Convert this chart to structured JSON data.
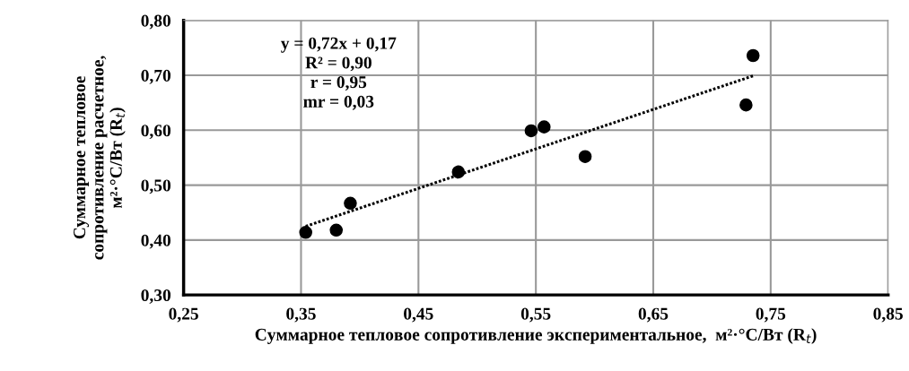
{
  "chart_data": {
    "type": "scatter",
    "xlabel": "Суммарное тепловое сопротивление экспериментальное,  м²·°С/Вт (R$_{t}$)",
    "ylabel": "Суммарное тепловое\nсопротивление расчетное,\nм²·°С/Вт (R$_{t}$)",
    "series": [
      {
        "color": "#000000",
        "marker": "circle",
        "x": [
          0.354,
          0.38,
          0.392,
          0.484,
          0.546,
          0.557,
          0.592,
          0.729,
          0.735
        ],
        "values": [
          0.414,
          0.418,
          0.467,
          0.524,
          0.599,
          0.606,
          0.552,
          0.646,
          0.736
        ]
      },
      {
        "type": "line",
        "color": "#000000",
        "line_style": "dotted",
        "x": [
          0.354,
          0.735
        ],
        "values": [
          0.425,
          0.699
        ]
      }
    ],
    "annotations": [
      "y = 0,72x + 0,17\nR² = 0,90\nr = 0,95\nmr = 0,03"
    ],
    "xlim": [
      0.25,
      0.85
    ],
    "xticks": [
      {
        "value": 0.25,
        "label": "0,25"
      },
      {
        "value": 0.35,
        "label": "0,35"
      },
      {
        "value": 0.45,
        "label": "0,45"
      },
      {
        "value": 0.55,
        "label": "0,55"
      },
      {
        "value": 0.65,
        "label": "0,65"
      },
      {
        "value": 0.75,
        "label": "0,75"
      },
      {
        "value": 0.85,
        "label": "0,85"
      }
    ],
    "ylim": [
      0.3,
      0.8
    ],
    "yticks": [
      {
        "value": 0.3,
        "label": "0,30"
      },
      {
        "value": 0.4,
        "label": "0,40"
      },
      {
        "value": 0.5,
        "label": "0,50"
      },
      {
        "value": 0.6,
        "label": "0,60"
      },
      {
        "value": 0.7,
        "label": "0,70"
      },
      {
        "value": 0.8,
        "label": "0,80"
      }
    ],
    "grid": true,
    "legend": false
  }
}
